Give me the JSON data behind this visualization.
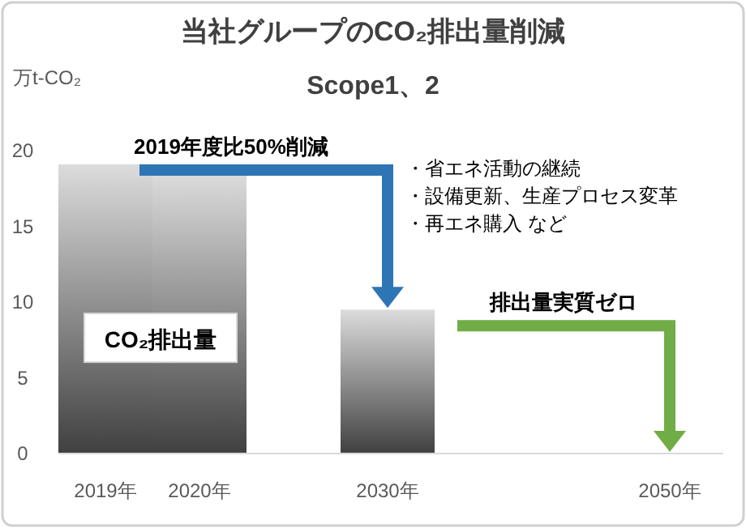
{
  "chart_data": {
    "type": "bar",
    "title": "当社グループのCO₂排出量削減",
    "subtitle": "Scope1、2",
    "ylabel": "万t-CO₂",
    "categories": [
      "2019年",
      "2020年",
      null,
      "2030年",
      null,
      null,
      "2050年"
    ],
    "values": [
      19.1,
      18.5,
      null,
      9.5,
      null,
      null,
      0
    ],
    "color": "#404040",
    "ylim": [
      0,
      20
    ],
    "yticks": [
      0,
      5,
      10,
      15,
      20
    ],
    "annotations": [
      "2019年度比50%削減",
      "排出量実質ゼロ",
      "・省エネ活動の継続",
      "・設備更新、生産プロセス変革",
      "・再エネ購入  など",
      "CO₂排出量"
    ]
  }
}
